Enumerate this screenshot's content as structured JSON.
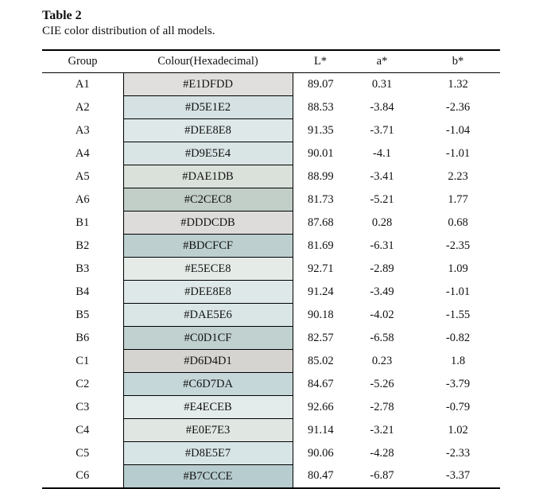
{
  "caption": {
    "title": "Table 2",
    "subtitle": "CIE color distribution of all models."
  },
  "table": {
    "headers": [
      "Group",
      "Colour(Hexadecimal)",
      "L*",
      "a*",
      "b*"
    ],
    "rows": [
      {
        "group": "A1",
        "hex": "#E1DFDD",
        "L": "89.07",
        "a": "0.31",
        "b": "1.32"
      },
      {
        "group": "A2",
        "hex": "#D5E1E2",
        "L": "88.53",
        "a": "-3.84",
        "b": "-2.36"
      },
      {
        "group": "A3",
        "hex": "#DEE8E8",
        "L": "91.35",
        "a": "-3.71",
        "b": "-1.04"
      },
      {
        "group": "A4",
        "hex": "#D9E5E4",
        "L": "90.01",
        "a": "-4.1",
        "b": "-1.01"
      },
      {
        "group": "A5",
        "hex": "#DAE1DB",
        "L": "88.99",
        "a": "-3.41",
        "b": "2.23"
      },
      {
        "group": "A6",
        "hex": "#C2CEC8",
        "L": "81.73",
        "a": "-5.21",
        "b": "1.77"
      },
      {
        "group": "B1",
        "hex": "#DDDCDB",
        "L": "87.68",
        "a": "0.28",
        "b": "0.68"
      },
      {
        "group": "B2",
        "hex": "#BDCFCF",
        "L": "81.69",
        "a": "-6.31",
        "b": "-2.35"
      },
      {
        "group": "B3",
        "hex": "#E5ECE8",
        "L": "92.71",
        "a": "-2.89",
        "b": "1.09"
      },
      {
        "group": "B4",
        "hex": "#DEE8E8",
        "L": "91.24",
        "a": "-3.49",
        "b": "-1.01"
      },
      {
        "group": "B5",
        "hex": "#DAE5E6",
        "L": "90.18",
        "a": "-4.02",
        "b": "-1.55"
      },
      {
        "group": "B6",
        "hex": "#C0D1CF",
        "L": "82.57",
        "a": "-6.58",
        "b": "-0.82"
      },
      {
        "group": "C1",
        "hex": "#D6D4D1",
        "L": "85.02",
        "a": "0.23",
        "b": "1.8"
      },
      {
        "group": "C2",
        "hex": "#C6D7DA",
        "L": "84.67",
        "a": "-5.26",
        "b": "-3.79"
      },
      {
        "group": "C3",
        "hex": "#E4ECEB",
        "L": "92.66",
        "a": "-2.78",
        "b": "-0.79"
      },
      {
        "group": "C4",
        "hex": "#E0E7E3",
        "L": "91.14",
        "a": "-3.21",
        "b": "1.02"
      },
      {
        "group": "C5",
        "hex": "#D8E5E7",
        "L": "90.06",
        "a": "-4.28",
        "b": "-2.33"
      },
      {
        "group": "C6",
        "hex": "#B7CCCE",
        "L": "80.47",
        "a": "-6.87",
        "b": "-3.37"
      }
    ]
  }
}
